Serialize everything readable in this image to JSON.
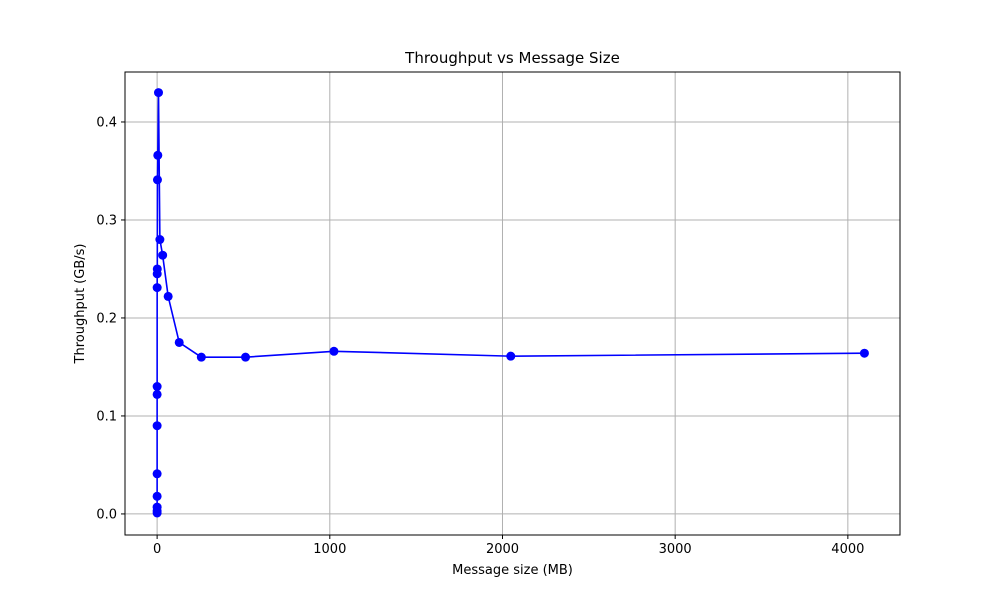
{
  "chart_data": {
    "type": "line",
    "title": "Throughput vs Message Size",
    "xlabel": "Message size (MB)",
    "ylabel": "Throughput (GB/s)",
    "xlim": [
      -186,
      4302
    ],
    "ylim": [
      -0.0215,
      0.451
    ],
    "xticks": [
      0,
      1000,
      2000,
      3000,
      4000
    ],
    "yticks": [
      0.0,
      0.1,
      0.2,
      0.3,
      0.4
    ],
    "grid": true,
    "series": [
      {
        "color": "#0000ff",
        "marker": "circle",
        "x": [
          0.001,
          0.002,
          0.004,
          0.008,
          0.016,
          0.031,
          0.0625,
          0.125,
          0.25,
          0.5,
          1,
          2,
          4,
          8,
          16,
          32,
          64,
          128,
          256,
          512,
          1024,
          2048,
          4096
        ],
        "y": [
          0.001,
          0.003,
          0.007,
          0.018,
          0.041,
          0.09,
          0.122,
          0.13,
          0.231,
          0.245,
          0.25,
          0.341,
          0.366,
          0.43,
          0.28,
          0.264,
          0.222,
          0.175,
          0.16,
          0.16,
          0.166,
          0.161,
          0.164
        ]
      }
    ]
  }
}
